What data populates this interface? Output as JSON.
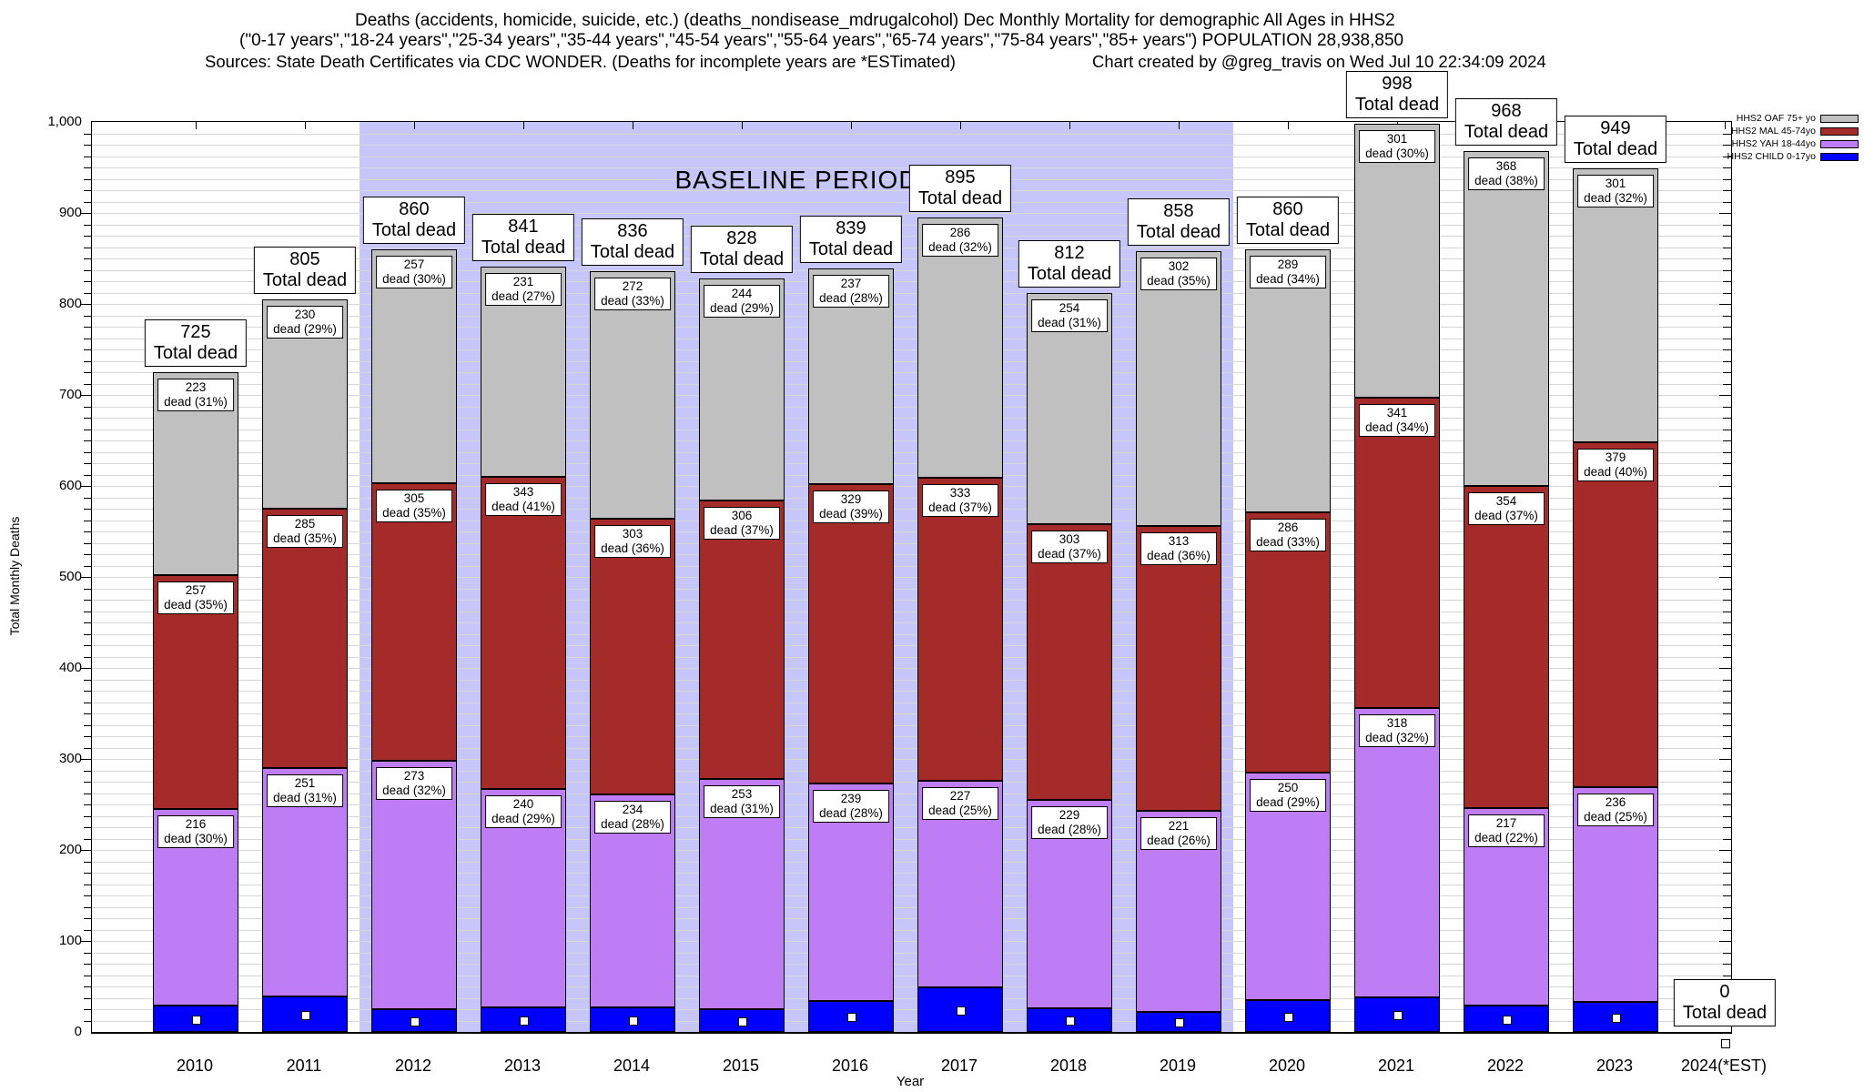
{
  "header": {
    "line1": "Deaths (accidents, homicide, suicide, etc.) (deaths_nondisease_mdrugalcohol) Dec Monthly Mortality for demographic All Ages in HHS2",
    "line2": "(\"0-17 years\",\"18-24 years\",\"25-34 years\",\"35-44 years\",\"45-54 years\",\"55-64 years\",\"65-74 years\",\"75-84 years\",\"85+ years\") POPULATION 28,938,850",
    "line3_left": "Sources: State Death Certificates via CDC WONDER. (Deaths for incomplete years are *ESTimated)",
    "line3_right": "Chart created by @greg_travis on Wed Jul 10 22:34:09 2024"
  },
  "legend": {
    "entries": [
      {
        "label": "HHS2 OAF 75+ yo",
        "color": "#c0c0c0"
      },
      {
        "label": "HHS2 MAL 45-74yo",
        "color": "#a52a2a"
      },
      {
        "label": "HHS2 YAH 18-44yo",
        "color": "#bf7df5"
      },
      {
        "label": "HHS2 CHILD 0-17yo",
        "color": "#0000ff"
      }
    ]
  },
  "chart_data": {
    "type": "bar",
    "stacked": true,
    "xlabel": "Year",
    "ylabel": "Total Monthly Deaths",
    "ylim": [
      0,
      1000
    ],
    "ytick_interval": 100,
    "minor_gridline_interval": 12.5,
    "yticks": [
      "0",
      "100",
      "200",
      "300",
      "400",
      "500",
      "600",
      "700",
      "800",
      "900",
      "1,000"
    ],
    "grid": true,
    "annotation": "BASELINE PERIOD",
    "baseline_band": {
      "from_category": "2012",
      "to_category": "2019",
      "color": "#c6c6fa"
    },
    "categories": [
      "2010",
      "2011",
      "2012",
      "2013",
      "2014",
      "2015",
      "2016",
      "2017",
      "2018",
      "2019",
      "2020",
      "2021",
      "2022",
      "2023",
      "2024(*EST)"
    ],
    "totals": [
      725,
      805,
      860,
      841,
      836,
      828,
      839,
      895,
      812,
      858,
      860,
      998,
      968,
      949,
      0
    ],
    "total_label_line2": "Total dead",
    "segment_label_word": "dead",
    "series": [
      {
        "name": "HHS2 CHILD 0-17yo",
        "color": "#0000ff",
        "show_value_labels": false,
        "marker": "white-square",
        "values": [
          29,
          39,
          25,
          27,
          27,
          25,
          34,
          49,
          26,
          22,
          35,
          38,
          29,
          33,
          0
        ],
        "note": "values estimated from bar heights; no printed labels"
      },
      {
        "name": "HHS2 YAH 18-44yo",
        "color": "#bf7df5",
        "show_value_labels": true,
        "values": [
          216,
          251,
          273,
          240,
          234,
          253,
          239,
          227,
          229,
          221,
          250,
          318,
          217,
          236,
          0
        ],
        "pct": [
          30,
          31,
          32,
          29,
          28,
          31,
          28,
          25,
          28,
          26,
          29,
          32,
          22,
          25,
          null
        ]
      },
      {
        "name": "HHS2 MAL 45-74yo",
        "color": "#a52a2a",
        "show_value_labels": true,
        "values": [
          257,
          285,
          305,
          343,
          303,
          306,
          329,
          333,
          303,
          313,
          286,
          341,
          354,
          379,
          0
        ],
        "pct": [
          35,
          35,
          35,
          41,
          36,
          37,
          39,
          37,
          37,
          36,
          33,
          34,
          37,
          40,
          null
        ]
      },
      {
        "name": "HHS2 OAF 75+ yo",
        "color": "#c0c0c0",
        "show_value_labels": true,
        "values": [
          223,
          230,
          257,
          231,
          272,
          244,
          237,
          286,
          254,
          302,
          289,
          301,
          368,
          301,
          0
        ],
        "pct": [
          31,
          29,
          30,
          27,
          33,
          29,
          28,
          32,
          31,
          35,
          34,
          30,
          38,
          32,
          null
        ]
      }
    ],
    "legend_position": "top-right"
  }
}
